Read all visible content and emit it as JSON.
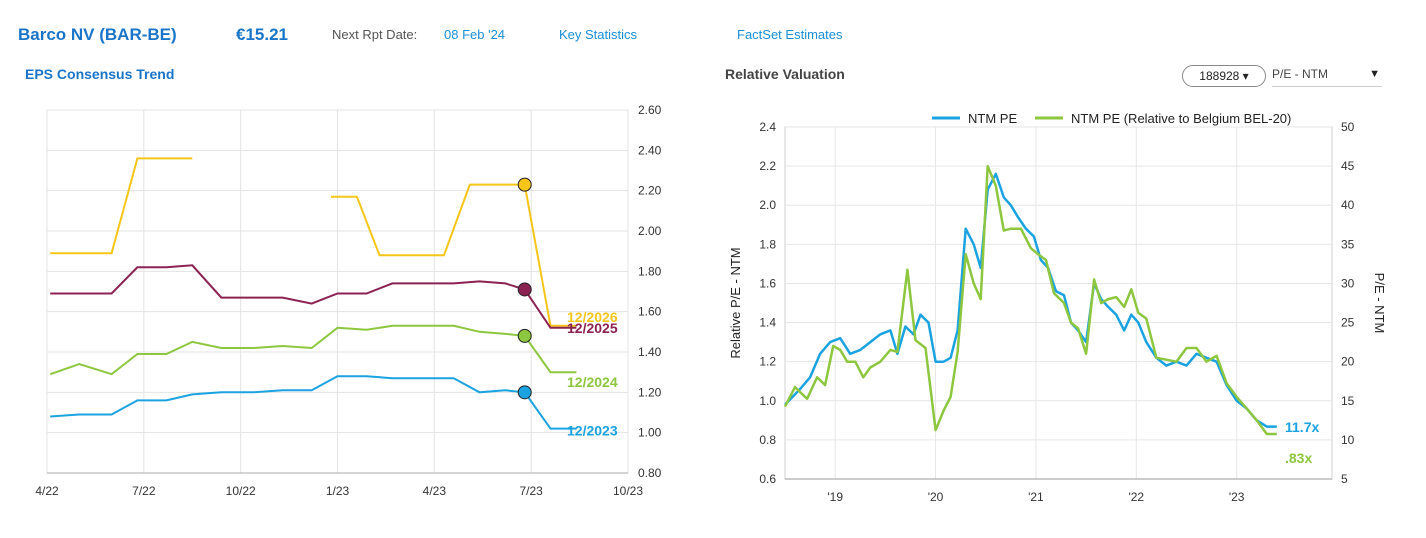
{
  "header": {
    "company": "Barco NV (BAR-BE)",
    "price": "€15.21",
    "next_report_label": "Next Rpt Date:",
    "next_report_date": "08 Feb '24",
    "links": [
      "Key Statistics",
      "FactSet Estimates"
    ]
  },
  "eps_section": {
    "title": "EPS Consensus Trend"
  },
  "relval_section": {
    "title": "Relative Valuation",
    "ticker_button": "188928 ▾",
    "metric_select": "P/E - NTM",
    "metric_caret": "▼"
  },
  "colors": {
    "yellow": "#f5c518",
    "maroon": "#8b2252",
    "green": "#8dc63f",
    "blue": "#1aa3e0",
    "brand": "#1a75c9"
  },
  "chart_data": [
    {
      "type": "line",
      "title": "EPS Consensus Trend",
      "x_ticks": [
        "4/22",
        "7/22",
        "10/22",
        "1/23",
        "4/23",
        "7/23",
        "10/23"
      ],
      "y_ticks": [
        "2.60",
        "2.40",
        "2.20",
        "2.00",
        "1.80",
        "1.60",
        "1.40",
        "1.20",
        "1.00",
        "0.80"
      ],
      "ylim": [
        0.8,
        2.6
      ],
      "grid": true,
      "series": [
        {
          "name": "12/2026",
          "color": "#f5c518",
          "marker_value": 2.23,
          "segments": [
            [
              [
                0.1,
                1.89
              ],
              [
                2.0,
                1.89
              ],
              [
                2.8,
                2.36
              ],
              [
                4.5,
                2.36
              ]
            ],
            [
              [
                8.8,
                2.17
              ],
              [
                9.6,
                2.17
              ],
              [
                10.3,
                1.88
              ],
              [
                12.3,
                1.88
              ],
              [
                13.1,
                2.23
              ],
              [
                14.8,
                2.23
              ],
              [
                15.6,
                1.53
              ],
              [
                16.4,
                1.53
              ]
            ]
          ]
        },
        {
          "name": "12/2025",
          "color": "#8b2252",
          "marker_value": 1.71,
          "segments": [
            [
              [
                0.1,
                1.69
              ],
              [
                2.0,
                1.69
              ],
              [
                2.8,
                1.82
              ],
              [
                3.7,
                1.82
              ],
              [
                4.5,
                1.83
              ],
              [
                5.4,
                1.67
              ],
              [
                7.3,
                1.67
              ],
              [
                8.2,
                1.64
              ],
              [
                9.0,
                1.69
              ],
              [
                9.9,
                1.69
              ],
              [
                10.7,
                1.74
              ],
              [
                12.6,
                1.74
              ],
              [
                13.4,
                1.75
              ],
              [
                14.2,
                1.74
              ],
              [
                14.8,
                1.71
              ],
              [
                15.6,
                1.52
              ],
              [
                16.4,
                1.52
              ]
            ]
          ]
        },
        {
          "name": "12/2024",
          "color": "#8dc63f",
          "marker_value": 1.48,
          "segments": [
            [
              [
                0.1,
                1.29
              ],
              [
                1.0,
                1.34
              ],
              [
                2.0,
                1.29
              ],
              [
                2.8,
                1.39
              ],
              [
                3.7,
                1.39
              ],
              [
                4.5,
                1.45
              ],
              [
                5.4,
                1.42
              ],
              [
                6.4,
                1.42
              ],
              [
                7.3,
                1.43
              ],
              [
                8.2,
                1.42
              ],
              [
                9.0,
                1.52
              ],
              [
                9.9,
                1.51
              ],
              [
                10.7,
                1.53
              ],
              [
                12.6,
                1.53
              ],
              [
                13.4,
                1.5
              ],
              [
                14.2,
                1.49
              ],
              [
                14.8,
                1.48
              ],
              [
                15.6,
                1.3
              ],
              [
                16.4,
                1.3
              ]
            ]
          ]
        },
        {
          "name": "12/2023",
          "color": "#1aa3e0",
          "marker_value": 1.2,
          "segments": [
            [
              [
                0.1,
                1.08
              ],
              [
                1.0,
                1.09
              ],
              [
                2.0,
                1.09
              ],
              [
                2.8,
                1.16
              ],
              [
                3.7,
                1.16
              ],
              [
                4.5,
                1.19
              ],
              [
                5.4,
                1.2
              ],
              [
                6.4,
                1.2
              ],
              [
                7.3,
                1.21
              ],
              [
                8.2,
                1.21
              ],
              [
                9.0,
                1.28
              ],
              [
                9.9,
                1.28
              ],
              [
                10.7,
                1.27
              ],
              [
                12.6,
                1.27
              ],
              [
                13.4,
                1.2
              ],
              [
                14.2,
                1.21
              ],
              [
                14.8,
                1.2
              ],
              [
                15.6,
                1.02
              ],
              [
                16.4,
                1.02
              ]
            ]
          ]
        }
      ],
      "markers_at_x": 14.8
    },
    {
      "type": "line",
      "title": "Relative Valuation",
      "legend": [
        "NTM PE",
        "NTM PE (Relative to Belgium BEL-20)"
      ],
      "legend_position": "top-right",
      "x_ticks": [
        "'19",
        "'20",
        "'21",
        "'22",
        "'23"
      ],
      "x_tick_positions": [
        2019,
        2020,
        2021,
        2022,
        2023
      ],
      "xlim": [
        2018.5,
        2023.95
      ],
      "left_axis": {
        "label": "Relative P/E - NTM",
        "ticks": [
          "2.4",
          "2.2",
          "2.0",
          "1.8",
          "1.6",
          "1.4",
          "1.2",
          "1.0",
          "0.8",
          "0.6"
        ],
        "lim": [
          0.6,
          2.4
        ]
      },
      "right_axis": {
        "label": "P/E - NTM",
        "ticks": [
          "50",
          "45",
          "40",
          "35",
          "30",
          "25",
          "20",
          "15",
          "10",
          "5"
        ],
        "lim": [
          5,
          50
        ]
      },
      "grid": true,
      "series": [
        {
          "name": "NTM PE",
          "axis": "right",
          "color": "#1aa3e0",
          "end_label": "11.7x",
          "points": [
            [
              2018.5,
              14.5
            ],
            [
              2018.65,
              16.5
            ],
            [
              2018.75,
              18
            ],
            [
              2018.85,
              21
            ],
            [
              2018.95,
              22.5
            ],
            [
              2019.05,
              23
            ],
            [
              2019.15,
              21
            ],
            [
              2019.25,
              21.5
            ],
            [
              2019.35,
              22.5
            ],
            [
              2019.45,
              23.5
            ],
            [
              2019.55,
              24
            ],
            [
              2019.62,
              21
            ],
            [
              2019.7,
              24.5
            ],
            [
              2019.78,
              23.5
            ],
            [
              2019.85,
              26
            ],
            [
              2019.93,
              25
            ],
            [
              2020.0,
              20
            ],
            [
              2020.08,
              20
            ],
            [
              2020.15,
              20.5
            ],
            [
              2020.22,
              24
            ],
            [
              2020.3,
              37
            ],
            [
              2020.38,
              35
            ],
            [
              2020.45,
              32
            ],
            [
              2020.52,
              42
            ],
            [
              2020.6,
              44
            ],
            [
              2020.68,
              41
            ],
            [
              2020.75,
              40
            ],
            [
              2020.82,
              38.5
            ],
            [
              2020.9,
              37
            ],
            [
              2020.98,
              36
            ],
            [
              2021.05,
              33
            ],
            [
              2021.12,
              32
            ],
            [
              2021.2,
              29
            ],
            [
              2021.28,
              28.5
            ],
            [
              2021.35,
              25
            ],
            [
              2021.42,
              24
            ],
            [
              2021.5,
              22.5
            ],
            [
              2021.58,
              30
            ],
            [
              2021.65,
              28
            ],
            [
              2021.72,
              27
            ],
            [
              2021.8,
              26
            ],
            [
              2021.88,
              24
            ],
            [
              2021.95,
              26
            ],
            [
              2022.02,
              25
            ],
            [
              2022.1,
              22.5
            ],
            [
              2022.2,
              20.5
            ],
            [
              2022.3,
              19.5
            ],
            [
              2022.4,
              20
            ],
            [
              2022.5,
              19.5
            ],
            [
              2022.6,
              21
            ],
            [
              2022.7,
              20.5
            ],
            [
              2022.8,
              20
            ],
            [
              2022.9,
              17
            ],
            [
              2023.0,
              15
            ],
            [
              2023.1,
              14
            ],
            [
              2023.2,
              12.5
            ],
            [
              2023.3,
              11.7
            ],
            [
              2023.4,
              11.7
            ]
          ]
        },
        {
          "name": "NTM PE (Relative to Belgium BEL-20)",
          "axis": "left",
          "color": "#8dc63f",
          "end_label": ".83x",
          "points": [
            [
              2018.5,
              0.97
            ],
            [
              2018.6,
              1.07
            ],
            [
              2018.72,
              1.01
            ],
            [
              2018.82,
              1.12
            ],
            [
              2018.9,
              1.08
            ],
            [
              2018.98,
              1.28
            ],
            [
              2019.05,
              1.26
            ],
            [
              2019.12,
              1.2
            ],
            [
              2019.2,
              1.2
            ],
            [
              2019.28,
              1.12
            ],
            [
              2019.35,
              1.17
            ],
            [
              2019.45,
              1.2
            ],
            [
              2019.55,
              1.26
            ],
            [
              2019.62,
              1.25
            ],
            [
              2019.72,
              1.67
            ],
            [
              2019.8,
              1.31
            ],
            [
              2019.9,
              1.27
            ],
            [
              2020.0,
              0.85
            ],
            [
              2020.08,
              0.95
            ],
            [
              2020.15,
              1.02
            ],
            [
              2020.22,
              1.25
            ],
            [
              2020.3,
              1.75
            ],
            [
              2020.38,
              1.6
            ],
            [
              2020.45,
              1.52
            ],
            [
              2020.52,
              2.2
            ],
            [
              2020.6,
              2.1
            ],
            [
              2020.68,
              1.87
            ],
            [
              2020.75,
              1.88
            ],
            [
              2020.85,
              1.88
            ],
            [
              2020.95,
              1.78
            ],
            [
              2021.02,
              1.75
            ],
            [
              2021.1,
              1.72
            ],
            [
              2021.18,
              1.55
            ],
            [
              2021.28,
              1.5
            ],
            [
              2021.35,
              1.4
            ],
            [
              2021.42,
              1.37
            ],
            [
              2021.5,
              1.24
            ],
            [
              2021.58,
              1.62
            ],
            [
              2021.65,
              1.5
            ],
            [
              2021.72,
              1.52
            ],
            [
              2021.8,
              1.53
            ],
            [
              2021.88,
              1.48
            ],
            [
              2021.95,
              1.57
            ],
            [
              2022.02,
              1.45
            ],
            [
              2022.1,
              1.42
            ],
            [
              2022.2,
              1.22
            ],
            [
              2022.3,
              1.21
            ],
            [
              2022.4,
              1.2
            ],
            [
              2022.5,
              1.27
            ],
            [
              2022.6,
              1.27
            ],
            [
              2022.7,
              1.2
            ],
            [
              2022.8,
              1.23
            ],
            [
              2022.9,
              1.09
            ],
            [
              2023.0,
              1.02
            ],
            [
              2023.1,
              0.96
            ],
            [
              2023.2,
              0.9
            ],
            [
              2023.3,
              0.83
            ],
            [
              2023.4,
              0.83
            ]
          ]
        }
      ]
    }
  ]
}
